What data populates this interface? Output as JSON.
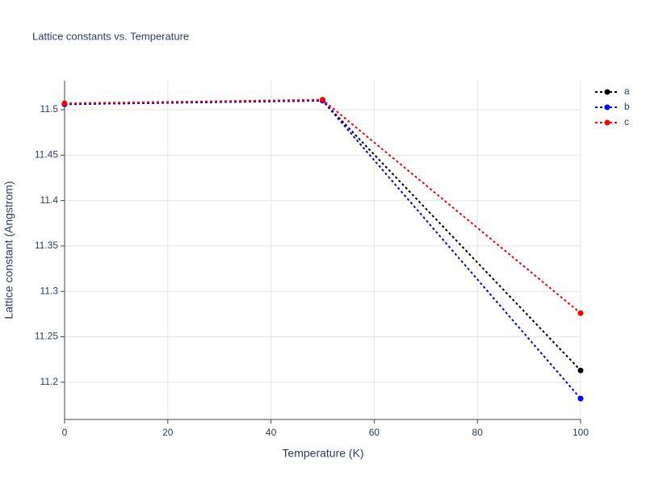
{
  "chart_data": {
    "type": "line",
    "title": "Lattice constants vs. Temperature",
    "x_label": "Temperature (K)",
    "y_label": "Lattice constant (Angstrom)",
    "x": [
      0,
      50,
      100
    ],
    "series": [
      {
        "name": "a",
        "color": "#000000",
        "values": [
          11.506,
          11.51,
          11.213
        ]
      },
      {
        "name": "b",
        "color": "#0000ff",
        "values": [
          11.506,
          11.51,
          11.182
        ]
      },
      {
        "name": "c",
        "color": "#ff0000",
        "values": [
          11.507,
          11.511,
          11.276
        ]
      }
    ],
    "xlim": [
      0,
      100
    ],
    "xticks": [
      0,
      20,
      40,
      60,
      80,
      100
    ],
    "ylim": [
      11.159,
      11.532
    ],
    "yticks": [
      11.2,
      11.25,
      11.3,
      11.35,
      11.4,
      11.45,
      11.5
    ],
    "grid": true,
    "line_style": "dotted",
    "legend": "top-right"
  }
}
